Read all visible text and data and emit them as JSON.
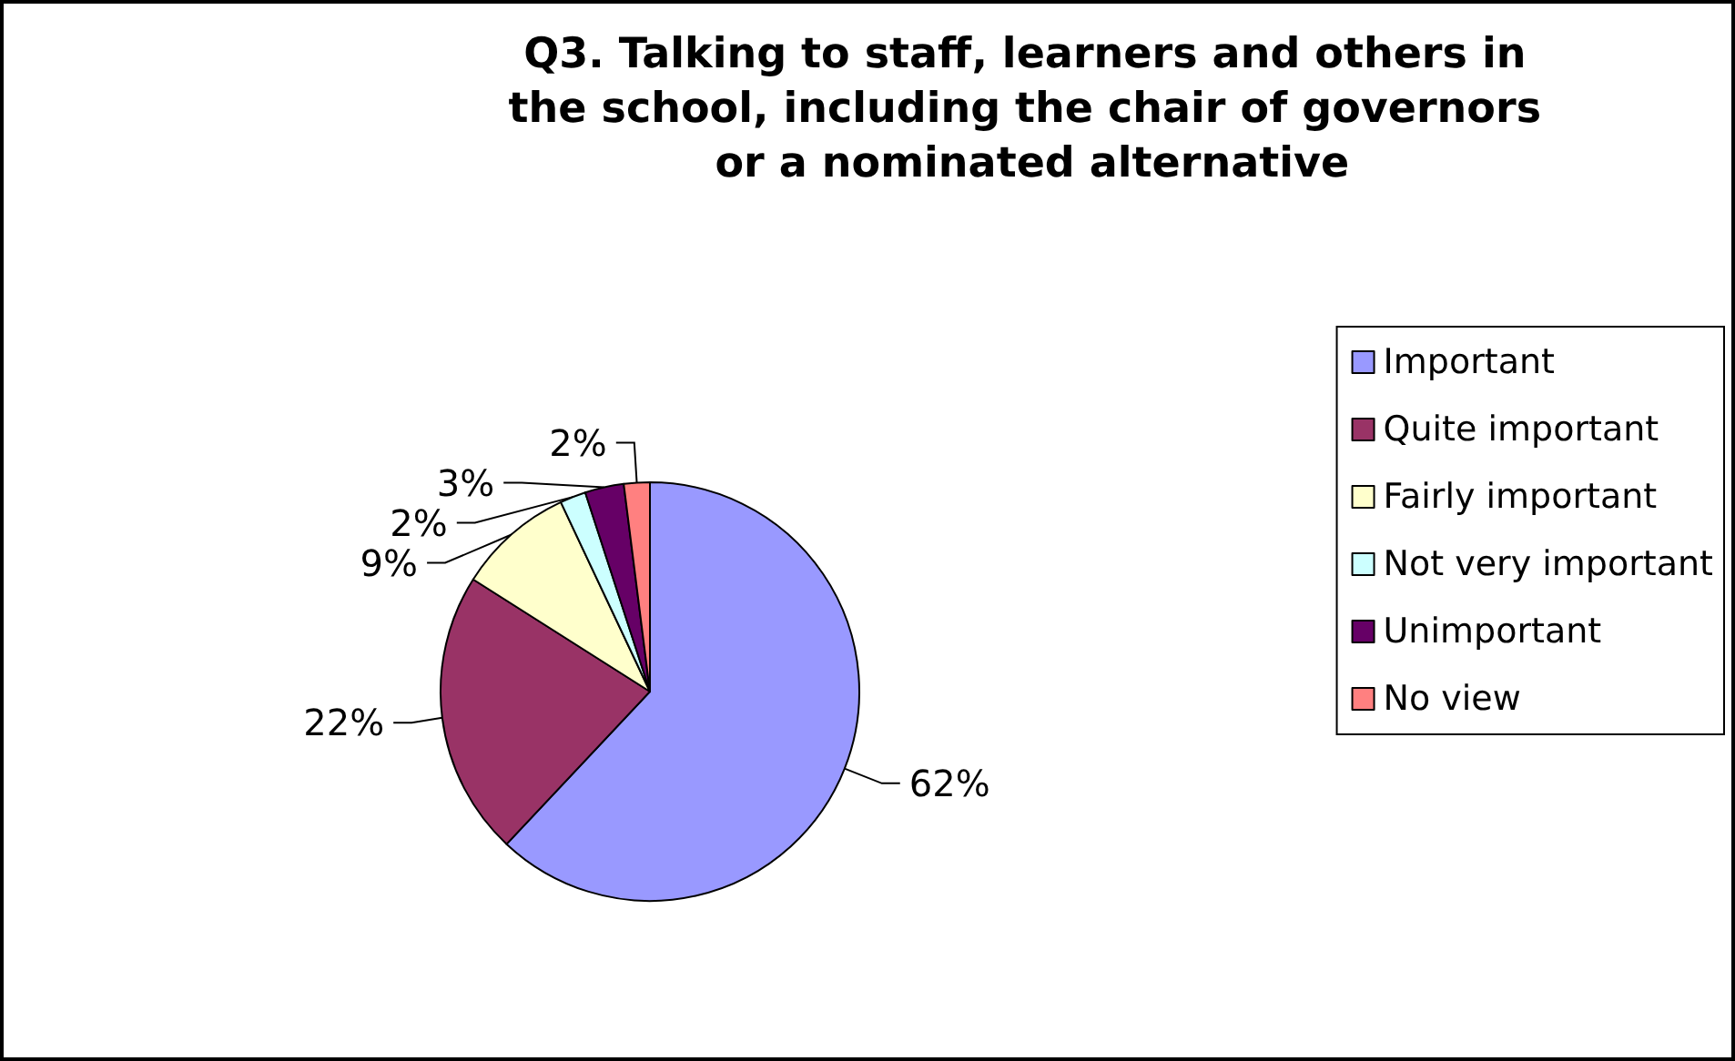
{
  "chart_data": {
    "type": "pie",
    "title": "Q3. Talking to staff, learners and others in the school, including the chair of governors or a nominated alternative",
    "categories": [
      "Important",
      "Quite important",
      "Fairly important",
      "Not very important",
      "Unimportant",
      "No view"
    ],
    "values": [
      62,
      22,
      9,
      2,
      3,
      2
    ],
    "value_labels": [
      "62%",
      "22%",
      "9%",
      "2%",
      "3%",
      "2%"
    ],
    "colors": [
      "#9999ff",
      "#993366",
      "#ffffcc",
      "#ccffff",
      "#660066",
      "#ff8080"
    ],
    "legend": "right"
  }
}
